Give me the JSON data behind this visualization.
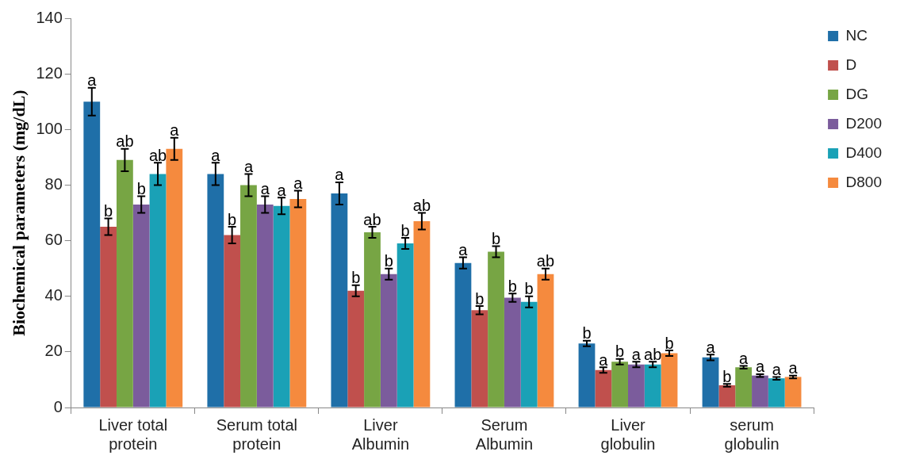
{
  "chart_data": {
    "type": "bar",
    "ylabel": "Biochemical parameters (mg/dL)",
    "categories": [
      "Liver total protein",
      "Serum total protein",
      "Liver Albumin",
      "Serum Albumin",
      "Liver globulin",
      "serum globulin"
    ],
    "ylim": [
      0,
      140
    ],
    "yticks": [
      0,
      20,
      40,
      60,
      80,
      100,
      120,
      140
    ],
    "grid": false,
    "legend": "right",
    "series": [
      {
        "name": "NC",
        "color": "#1f6fa8",
        "values": [
          110,
          84,
          77,
          52,
          23,
          18
        ],
        "errors": [
          5,
          4,
          4,
          2,
          1,
          1
        ],
        "value_labels": [
          "a",
          "a",
          "a",
          "a",
          "b",
          "a"
        ]
      },
      {
        "name": "D",
        "color": "#c0504d",
        "values": [
          65,
          62,
          42,
          35,
          13.5,
          8
        ],
        "errors": [
          3,
          3,
          2,
          1.5,
          1,
          0.5
        ],
        "value_labels": [
          "b",
          "b",
          "b",
          "b",
          "a",
          "b"
        ]
      },
      {
        "name": "DG",
        "color": "#77a544",
        "values": [
          89,
          80,
          63,
          56,
          16.5,
          14.5
        ],
        "errors": [
          4,
          4,
          2,
          2,
          1,
          0.5
        ],
        "value_labels": [
          "ab",
          "a",
          "ab",
          "b",
          "b",
          "a"
        ]
      },
      {
        "name": "D200",
        "color": "#7b5c9c",
        "values": [
          73,
          73,
          48,
          39.5,
          15.5,
          11.5
        ],
        "errors": [
          3,
          3,
          2,
          1.5,
          1,
          0.5
        ],
        "value_labels": [
          "b",
          "a",
          "b",
          "b",
          "a",
          "a"
        ]
      },
      {
        "name": "D400",
        "color": "#1aa1b6",
        "values": [
          84,
          72.5,
          59,
          38,
          15.5,
          10.5
        ],
        "errors": [
          4,
          3,
          2,
          2,
          1,
          0.5
        ],
        "value_labels": [
          "ab",
          "a",
          "b",
          "b",
          "ab",
          "a"
        ]
      },
      {
        "name": "D800",
        "color": "#f58a3e",
        "values": [
          93,
          75,
          67,
          48,
          19.5,
          11
        ],
        "errors": [
          4,
          3,
          3,
          2,
          1,
          0.5
        ],
        "value_labels": [
          "a",
          "a",
          "ab",
          "ab",
          "b",
          "a"
        ]
      }
    ]
  }
}
